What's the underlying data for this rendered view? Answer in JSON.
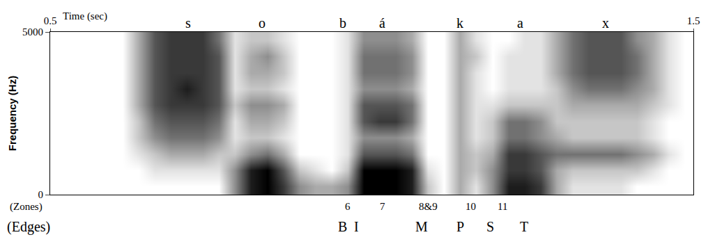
{
  "chart_data": {
    "type": "heatmap",
    "x_label": "Time (sec)",
    "y_label": "Frequency (Hz)",
    "color": "#000000",
    "grid": false,
    "xlim": [
      0.5,
      1.5
    ],
    "xticks": [
      0.5,
      1.5
    ],
    "ylim": [
      0,
      5000
    ],
    "yticks": [
      0,
      5000
    ],
    "zlim": [
      0,
      9
    ],
    "x": [
      0.5125,
      0.5375,
      0.5625,
      0.5875,
      0.6125,
      0.6375,
      0.6625,
      0.6875,
      0.7125,
      0.7375,
      0.7625,
      0.7875,
      0.8125,
      0.8375,
      0.8625,
      0.8875,
      0.9125,
      0.9375,
      0.9625,
      0.9875,
      1.0125,
      1.0375,
      1.0625,
      1.0875,
      1.1125,
      1.1375,
      1.1625,
      1.1875,
      1.2125,
      1.2375,
      1.2625,
      1.2875,
      1.3125,
      1.3375,
      1.3625,
      1.3875,
      1.4125,
      1.4375,
      1.4625,
      1.4875
    ],
    "y": [
      250,
      750,
      1250,
      1750,
      2250,
      2750,
      3250,
      3750,
      4250,
      4750
    ],
    "z": [
      [
        0,
        0,
        0,
        0,
        0,
        0,
        0,
        0,
        0,
        0,
        0,
        4,
        8,
        9,
        7,
        4,
        3,
        3,
        4,
        9,
        9,
        9,
        8,
        2,
        0,
        3,
        1,
        4,
        8,
        8,
        7,
        3,
        1,
        1,
        1,
        1,
        0,
        0,
        0,
        0
      ],
      [
        0,
        0,
        0,
        0,
        0,
        0,
        1,
        1,
        1,
        1,
        1,
        4,
        8,
        9,
        6,
        2,
        1,
        0,
        2,
        9,
        9,
        9,
        8,
        1,
        0,
        3,
        2,
        4,
        7,
        7,
        6,
        3,
        2,
        2,
        2,
        2,
        2,
        1,
        0,
        0
      ],
      [
        0,
        0,
        0,
        0,
        0,
        1,
        2,
        3,
        3,
        3,
        2,
        2,
        4,
        5,
        3,
        0,
        0,
        0,
        1,
        6,
        6,
        6,
        5,
        0,
        0,
        3,
        2,
        3,
        7,
        7,
        6,
        5,
        5,
        5,
        5,
        5,
        4,
        3,
        1,
        0
      ],
      [
        0,
        0,
        0,
        0,
        0,
        2,
        4,
        5,
        5,
        5,
        4,
        1,
        2,
        2,
        1,
        0,
        0,
        0,
        1,
        4,
        4,
        4,
        3,
        0,
        0,
        3,
        1,
        2,
        5,
        5,
        4,
        3,
        2,
        2,
        2,
        2,
        2,
        1,
        0,
        0
      ],
      [
        0,
        0,
        0,
        0,
        0,
        2,
        5,
        6,
        6,
        6,
        5,
        1,
        3,
        3,
        2,
        0,
        0,
        0,
        1,
        6,
        7,
        7,
        5,
        0,
        0,
        3,
        1,
        2,
        5,
        5,
        4,
        2,
        2,
        2,
        2,
        2,
        2,
        1,
        0,
        0
      ],
      [
        0,
        0,
        0,
        0,
        0,
        3,
        6,
        7,
        7,
        7,
        6,
        2,
        4,
        4,
        3,
        0,
        0,
        0,
        1,
        6,
        6,
        6,
        5,
        0,
        0,
        3,
        1,
        1,
        2,
        2,
        2,
        2,
        3,
        3,
        3,
        3,
        3,
        2,
        1,
        0
      ],
      [
        0,
        0,
        0,
        0,
        0,
        3,
        6,
        7,
        8,
        7,
        6,
        1,
        2,
        2,
        1,
        0,
        0,
        0,
        1,
        4,
        4,
        4,
        3,
        0,
        0,
        3,
        1,
        0,
        1,
        1,
        1,
        2,
        4,
        5,
        5,
        5,
        4,
        3,
        1,
        0
      ],
      [
        0,
        0,
        0,
        0,
        0,
        3,
        6,
        7,
        7,
        7,
        6,
        1,
        3,
        3,
        2,
        0,
        0,
        0,
        1,
        5,
        5,
        5,
        4,
        0,
        0,
        3,
        1,
        0,
        1,
        1,
        1,
        3,
        5,
        6,
        6,
        6,
        5,
        3,
        1,
        0
      ],
      [
        0,
        0,
        0,
        0,
        0,
        3,
        6,
        7,
        7,
        7,
        6,
        1,
        3,
        4,
        2,
        0,
        0,
        0,
        1,
        5,
        5,
        5,
        4,
        0,
        0,
        3,
        2,
        0,
        1,
        1,
        1,
        3,
        5,
        6,
        6,
        6,
        5,
        3,
        1,
        0
      ],
      [
        0,
        0,
        0,
        0,
        0,
        3,
        6,
        7,
        7,
        7,
        5,
        1,
        2,
        2,
        1,
        0,
        0,
        0,
        1,
        4,
        4,
        4,
        3,
        0,
        0,
        3,
        1,
        0,
        0,
        1,
        1,
        3,
        5,
        6,
        6,
        6,
        4,
        3,
        1,
        0
      ]
    ],
    "segments": [
      {
        "label": "s",
        "x": 0.714
      },
      {
        "label": "o",
        "x": 0.829
      },
      {
        "label": "b",
        "x": 0.955
      },
      {
        "label": "á",
        "x": 1.016
      },
      {
        "label": "k",
        "x": 1.137
      },
      {
        "label": "a",
        "x": 1.231
      },
      {
        "label": "x",
        "x": 1.364
      }
    ],
    "zones": {
      "label": "(Zones)",
      "marks": [
        {
          "label": "6",
          "x": 0.963
        },
        {
          "label": "7",
          "x": 1.017
        },
        {
          "label": "8&9",
          "x": 1.088
        },
        {
          "label": "10",
          "x": 1.154
        },
        {
          "label": "11",
          "x": 1.203
        }
      ]
    },
    "edges": {
      "label": "(Edges)",
      "marks": [
        {
          "label": "B",
          "x": 0.954
        },
        {
          "label": "I",
          "x": 0.976
        },
        {
          "label": "M",
          "x": 1.077
        },
        {
          "label": "P",
          "x": 1.138
        },
        {
          "label": "S",
          "x": 1.184
        },
        {
          "label": "T",
          "x": 1.237
        }
      ]
    }
  }
}
